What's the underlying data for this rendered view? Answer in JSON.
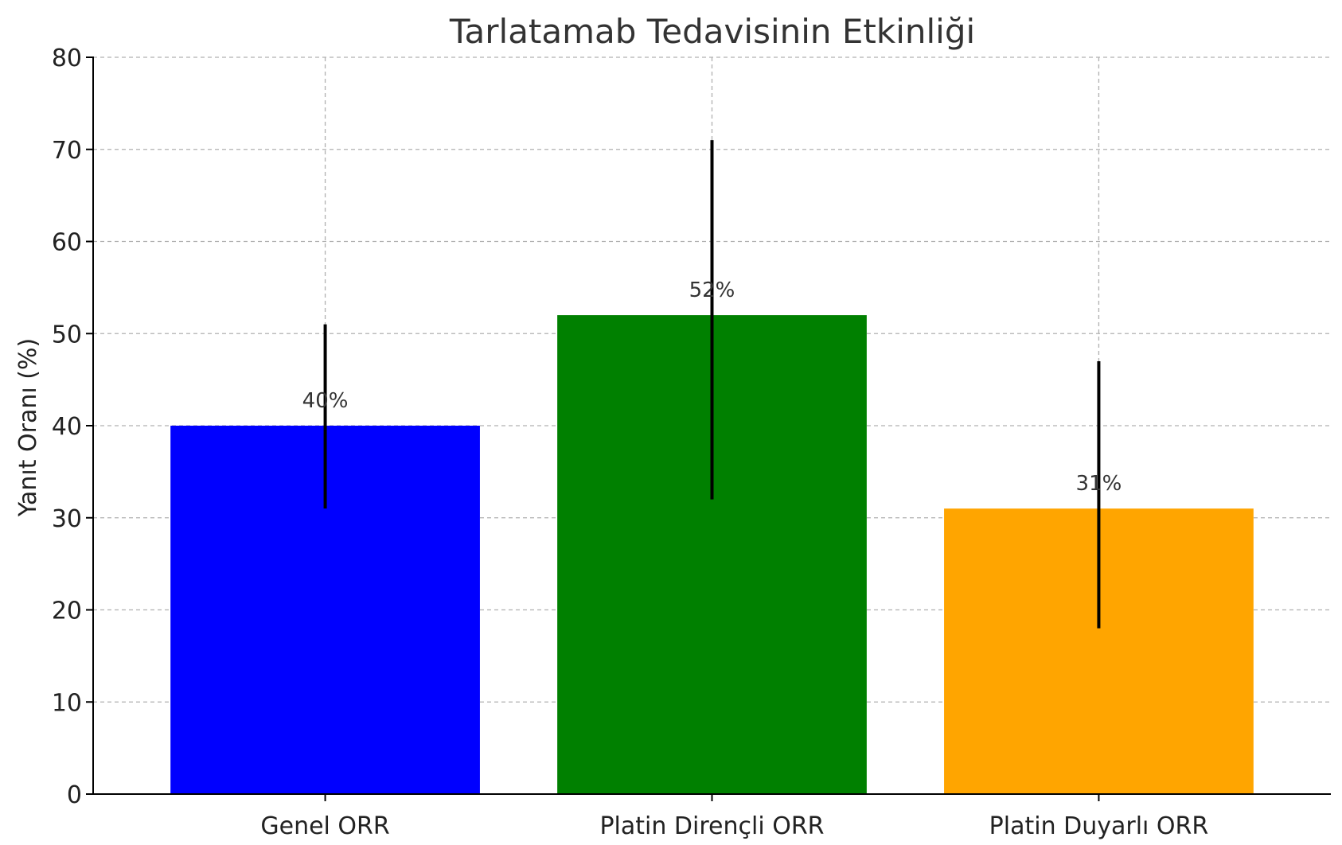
{
  "chart_data": {
    "type": "bar",
    "title": "Tarlatamab Tedavisinin Etkinliği",
    "xlabel": "",
    "ylabel": "Yanıt Oranı (%)",
    "categories": [
      "Genel ORR",
      "Platin Dirençli ORR",
      "Platin Duyarlı ORR"
    ],
    "values": [
      40,
      52,
      31
    ],
    "value_labels": [
      "40%",
      "52%",
      "31%"
    ],
    "error_bars": [
      {
        "low": 31,
        "high": 51
      },
      {
        "low": 32,
        "high": 71
      },
      {
        "low": 18,
        "high": 47
      }
    ],
    "colors": [
      "#0000ff",
      "#008000",
      "#ffa500"
    ],
    "ylim": [
      0,
      80
    ],
    "yticks": [
      0,
      10,
      20,
      30,
      40,
      50,
      60,
      70,
      80
    ],
    "grid": true
  }
}
